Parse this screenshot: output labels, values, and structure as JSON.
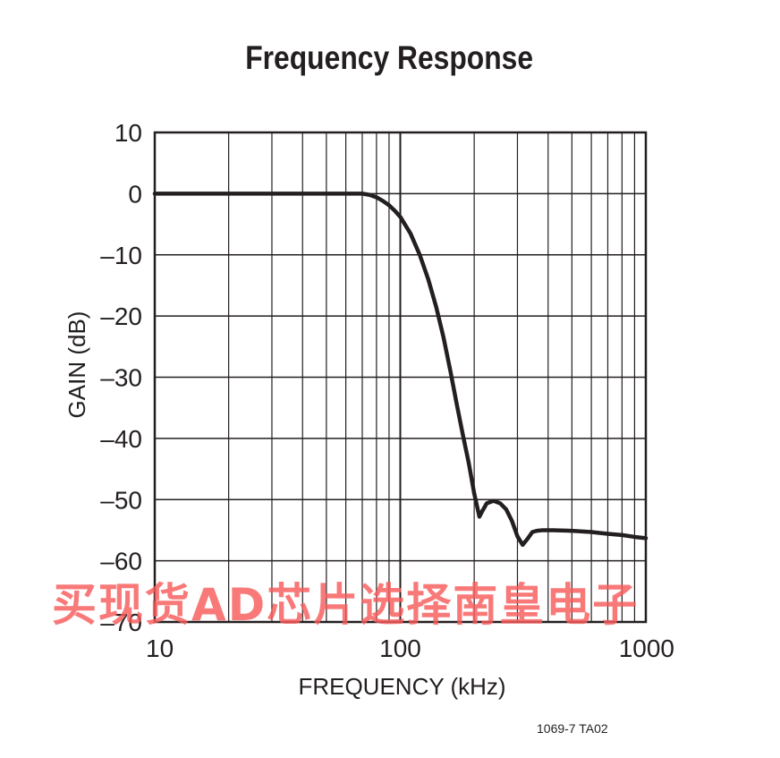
{
  "figure_id": "1069-7 TA02",
  "watermark": "买现货AD芯片选择南皇电子",
  "colors": {
    "line": "#231f20",
    "grid": "#231f20",
    "watermark": "#f85c5c"
  },
  "chart_data": {
    "type": "line",
    "title": "Frequency Response",
    "xlabel": "FREQUENCY (kHz)",
    "ylabel": "GAIN (dB)",
    "x_scale": "log",
    "xlim": [
      10,
      1000
    ],
    "ylim": [
      -70,
      10
    ],
    "x_ticks": [
      10,
      100,
      1000
    ],
    "x_tick_labels": [
      "10",
      "100",
      "1000"
    ],
    "y_ticks": [
      10,
      0,
      -10,
      -20,
      -30,
      -40,
      -50,
      -60,
      -70
    ],
    "y_tick_labels": [
      "10",
      "0",
      "–10",
      "–20",
      "–30",
      "–40",
      "–50",
      "–60",
      "–70"
    ],
    "grid": true,
    "series": [
      {
        "x": [
          10,
          20,
          40,
          60,
          70,
          75,
          80,
          85,
          90,
          95,
          100,
          110,
          120,
          130,
          140,
          150,
          160,
          170,
          180,
          190,
          200,
          210,
          215,
          225,
          240,
          255,
          270,
          285,
          300,
          315,
          330,
          345,
          360,
          380,
          420,
          500,
          600,
          700,
          800,
          900,
          1000
        ],
        "y": [
          0,
          0,
          0,
          0,
          0,
          -0.2,
          -0.6,
          -1.2,
          -1.9,
          -2.8,
          -3.8,
          -6.5,
          -10,
          -14,
          -18.5,
          -23.5,
          -29,
          -34.5,
          -39.5,
          -44,
          -49,
          -52.8,
          -52,
          -50.6,
          -50.2,
          -50.6,
          -51.6,
          -53.5,
          -56,
          -57.4,
          -56.4,
          -55.3,
          -55.1,
          -55.0,
          -55.0,
          -55.1,
          -55.3,
          -55.6,
          -55.8,
          -56.1,
          -56.3
        ]
      }
    ]
  }
}
